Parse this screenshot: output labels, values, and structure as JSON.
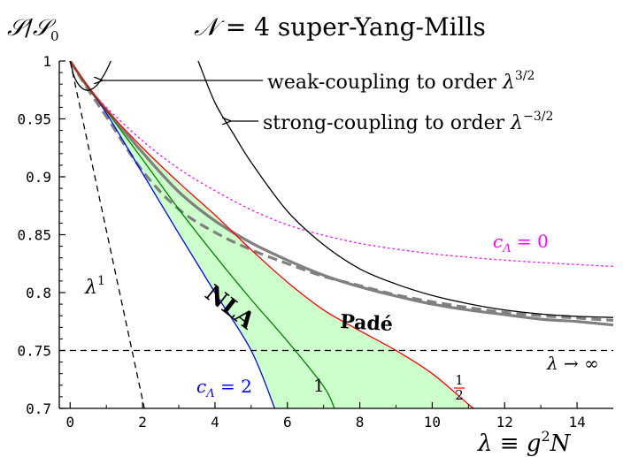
{
  "chart_data": {
    "type": "line",
    "title": "𝒩 = 4 super-Yang-Mills",
    "ylabel": "𝒮/𝒮₀",
    "xlabel": "λ ≡ g²N",
    "xlim": [
      -0.3,
      15
    ],
    "ylim": [
      0.7,
      1.0
    ],
    "x_ticks": [
      0,
      2,
      4,
      6,
      8,
      10,
      12,
      14
    ],
    "x_tick_labels": [
      "0",
      "2",
      "4",
      "6",
      "8",
      "10",
      "12",
      "14"
    ],
    "y_ticks": [
      1.0,
      0.95,
      0.9,
      0.85,
      0.8,
      0.75,
      0.7
    ],
    "y_tick_labels": [
      "1",
      "0.95",
      "0.9",
      "0.85",
      "0.8",
      "0.75",
      "0.7"
    ],
    "grid": false,
    "series": [
      {
        "name": "weak-coupling to order λ^{3/2}",
        "color": "#000000",
        "style": "solid",
        "x": [
          0,
          0.1,
          0.2,
          0.3,
          0.4,
          0.5,
          0.6,
          0.7,
          0.8,
          1.0,
          1.2,
          1.4
        ],
        "y": [
          1.0,
          0.9875,
          0.9811,
          0.9773,
          0.9752,
          0.9747,
          0.9757,
          0.978,
          0.9815,
          0.9917,
          1.0058,
          1.0234
        ]
      },
      {
        "name": "strong-coupling to order λ^{-3/2}",
        "color": "#000000",
        "style": "solid",
        "x": [
          3.5,
          4,
          4.5,
          5,
          6,
          7,
          8,
          9,
          10,
          11,
          12,
          13,
          14,
          15
        ],
        "y": [
          1.003,
          0.964,
          0.9376,
          0.9125,
          0.8703,
          0.8413,
          0.8205,
          0.8074,
          0.7975,
          0.7904,
          0.785,
          0.7815,
          0.7795,
          0.7785
        ]
      },
      {
        "name": "c_Λ = 0",
        "color": "#ff00ff",
        "style": "dotted",
        "x": [
          0,
          0.5,
          1,
          2,
          3,
          4,
          5,
          6,
          7,
          8,
          9,
          10,
          11,
          12,
          13,
          14,
          15
        ],
        "y": [
          1.0,
          0.978,
          0.96,
          0.931,
          0.907,
          0.888,
          0.8715,
          0.8585,
          0.8495,
          0.8425,
          0.8375,
          0.8335,
          0.8305,
          0.828,
          0.826,
          0.8242,
          0.8226
        ]
      },
      {
        "name": "c_Λ = 1/2",
        "color": "#ff0000",
        "style": "solid",
        "x": [
          0,
          0.5,
          1,
          2,
          3,
          4,
          5,
          6,
          7,
          8,
          9,
          10,
          11,
          11.15
        ],
        "y": [
          1.0,
          0.978,
          0.958,
          0.925,
          0.895,
          0.867,
          0.837,
          0.809,
          0.785,
          0.767,
          0.75,
          0.73,
          0.7035,
          0.7
        ]
      },
      {
        "name": "c_Λ = 1",
        "color": "#008000",
        "style": "solid",
        "x": [
          0,
          0.5,
          1,
          2,
          3,
          4,
          5,
          6,
          7,
          7.3
        ],
        "y": [
          1.0,
          0.977,
          0.957,
          0.915,
          0.872,
          0.832,
          0.794,
          0.758,
          0.719,
          0.7
        ]
      },
      {
        "name": "c_Λ = 2",
        "color": "#0000ff",
        "style": "solid",
        "x": [
          0,
          0.5,
          1,
          2,
          3,
          4,
          5,
          5.65
        ],
        "y": [
          1.0,
          0.977,
          0.955,
          0.903,
          0.851,
          0.8,
          0.75,
          0.7
        ]
      },
      {
        "name": "Padé",
        "color": "#808080",
        "style": "solid",
        "x": [
          0,
          0.5,
          1,
          2,
          3,
          4,
          5,
          6,
          7,
          8,
          9,
          10,
          11,
          12,
          13,
          14,
          15
        ],
        "y": [
          1.0,
          0.977,
          0.958,
          0.921,
          0.887,
          0.862,
          0.843,
          0.828,
          0.815,
          0.805,
          0.797,
          0.79,
          0.785,
          0.781,
          0.777,
          0.775,
          0.772
        ]
      },
      {
        "name": "Padé (dashed)",
        "color": "#808080",
        "style": "dashed",
        "x": [
          0,
          0.5,
          1,
          2,
          3,
          4,
          5,
          6,
          7,
          8,
          9,
          10,
          11,
          12,
          13,
          14,
          15
        ],
        "y": [
          1.0,
          0.975,
          0.952,
          0.905,
          0.872,
          0.852,
          0.837,
          0.825,
          0.814,
          0.806,
          0.798,
          0.792,
          0.787,
          0.783,
          0.78,
          0.778,
          0.776
        ]
      },
      {
        "name": "λ^1",
        "color": "#000000",
        "style": "dashed",
        "x": [
          0,
          2.05
        ],
        "y": [
          1.0,
          0.7
        ]
      },
      {
        "name": "λ → ∞",
        "color": "#000000",
        "style": "dashed",
        "x": [
          -0.3,
          15
        ],
        "y": [
          0.75,
          0.75
        ]
      }
    ],
    "nla_band": {
      "fill": "#ccffcc",
      "label": "NLA",
      "upper_series": "c_Λ = 1/2",
      "lower_series": "c_Λ = 2"
    },
    "annotations": [
      {
        "text": "weak-coupling to order λ^{3/2}"
      },
      {
        "text": "strong-coupling to order λ^{-3/2}"
      },
      {
        "text": "c_Λ = 0"
      },
      {
        "text": "Padé"
      },
      {
        "text": "NLA"
      },
      {
        "text": "λ^1"
      },
      {
        "text": "λ → ∞"
      },
      {
        "text": "c_Λ = 2"
      },
      {
        "text": "1"
      },
      {
        "text": "1/2"
      }
    ]
  }
}
